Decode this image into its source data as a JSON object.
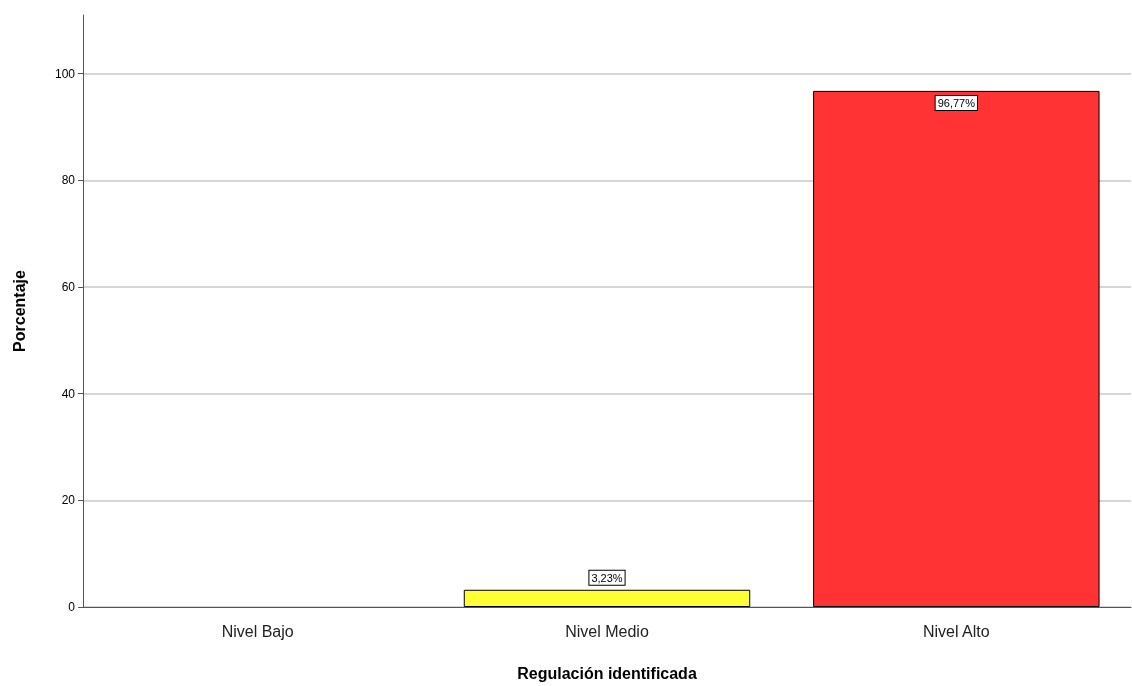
{
  "chart_data": {
    "type": "bar",
    "xlabel": "Regulación identificada",
    "ylabel": "Porcentaje",
    "categories": [
      "Nivel Bajo",
      "Nivel Medio",
      "Nivel Alto"
    ],
    "values": [
      0,
      3.23,
      96.77
    ],
    "colors": [
      "#ffff33",
      "#ffff33",
      "#ff3333"
    ],
    "value_labels": [
      null,
      "3,23%",
      "96,77%"
    ],
    "ylim": [
      0,
      111
    ],
    "yticks": [
      0,
      20,
      40,
      60,
      80,
      100
    ],
    "grid": "y"
  }
}
